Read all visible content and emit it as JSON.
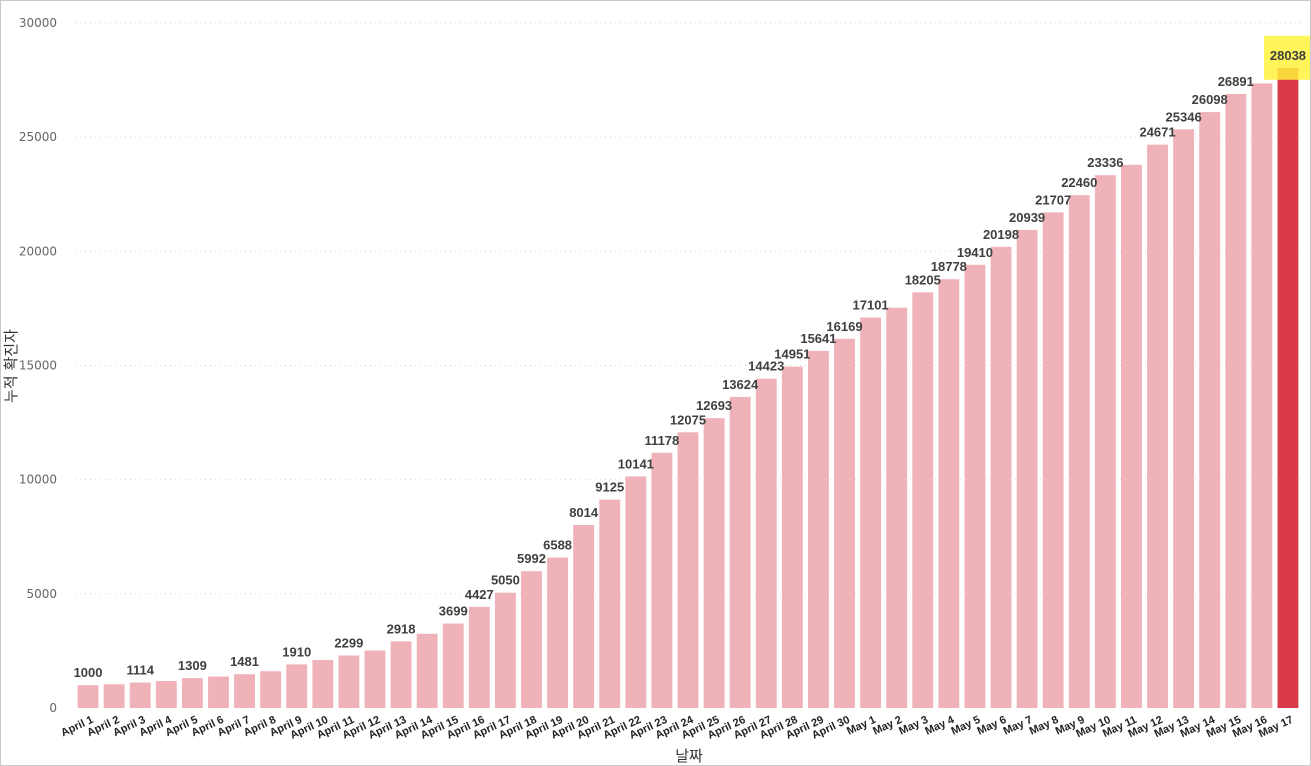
{
  "chart_data": {
    "type": "bar",
    "xlabel": "날짜",
    "ylabel": "누적 확진자",
    "ylim": [
      0,
      30000
    ],
    "yticks": [
      0,
      5000,
      10000,
      15000,
      20000,
      25000,
      30000
    ],
    "grid": true,
    "categories": [
      "April 1",
      "April 2",
      "April 3",
      "April 4",
      "April 5",
      "April 6",
      "April 7",
      "April 8",
      "April 9",
      "April 10",
      "April 11",
      "April 12",
      "April 13",
      "April 14",
      "April 15",
      "April 16",
      "April 17",
      "April 18",
      "April 19",
      "April 20",
      "April 21",
      "April 22",
      "April 23",
      "April 24",
      "April 25",
      "April 26",
      "April 27",
      "April 28",
      "April 29",
      "April 30",
      "May 1",
      "May 2",
      "May 3",
      "May 4",
      "May 5",
      "May 6",
      "May 7",
      "May 8",
      "May 9",
      "May 10",
      "May 11",
      "May 12",
      "May 13",
      "May 14",
      "May 15",
      "May 16",
      "May 17"
    ],
    "values": [
      1000,
      1040,
      1114,
      1180,
      1309,
      1380,
      1481,
      1610,
      1910,
      2100,
      2299,
      2520,
      2918,
      3250,
      3699,
      4427,
      5050,
      5992,
      6588,
      8014,
      9125,
      10141,
      11178,
      12075,
      12693,
      13624,
      14423,
      14951,
      15641,
      16169,
      17101,
      17530,
      18205,
      18778,
      19410,
      20198,
      20939,
      21707,
      22460,
      23336,
      23790,
      24671,
      25346,
      26098,
      26891,
      27350,
      28038
    ],
    "labeled_indices": [
      0,
      2,
      4,
      6,
      8,
      10,
      12,
      14,
      15,
      16,
      17,
      18,
      19,
      20,
      21,
      22,
      23,
      24,
      25,
      26,
      27,
      28,
      29,
      30,
      32,
      33,
      34,
      35,
      36,
      37,
      38,
      39,
      41,
      42,
      43,
      44,
      46
    ],
    "highlight_index": 46,
    "bar_color": "#efb2b8",
    "highlight_color": "#d83a47",
    "highlight_label_bg": "#fff23d"
  }
}
